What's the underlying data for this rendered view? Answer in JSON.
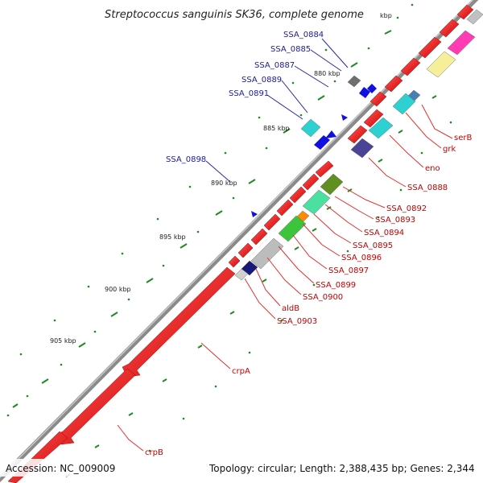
{
  "title": "Streptococcus sanguinis SK36, complete genome",
  "title_unit": "kbp",
  "footer": {
    "accession": "Accession: NC_009009",
    "summary": "Topology: circular; Length: 2,388,435 bp; Genes: 2,344"
  },
  "ticks": [
    "880 kbp",
    "885 kbp",
    "890 kbp",
    "895 kbp",
    "900 kbp",
    "905 kbp"
  ],
  "labels_blue": [
    "SSA_0884",
    "SSA_0885",
    "SSA_0887",
    "SSA_0889",
    "SSA_0891",
    "SSA_0898"
  ],
  "labels_red": [
    "serB",
    "grk",
    "eno",
    "SSA_0888",
    "SSA_0892",
    "SSA_0893",
    "SSA_0894",
    "SSA_0895",
    "SSA_0896",
    "SSA_0897",
    "SSA_0899",
    "SSA_0900",
    "aldB",
    "SSA_0903",
    "crpA",
    "crpB"
  ],
  "colors": {
    "backbone": "#8a8a8a",
    "gene_red": "#ee0000",
    "tick_green": "#1f8a1f",
    "label_blue": "#1a1aa0",
    "label_red": "#c40000",
    "leader_red": "#e03030",
    "leader_blue": "#2a2aa0"
  }
}
